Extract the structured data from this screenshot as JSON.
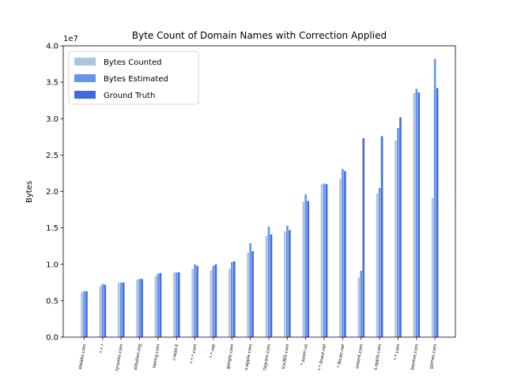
{
  "chart_data": {
    "type": "bar",
    "title": "Byte Count of Domain Names with Correction Applied",
    "xlabel": "",
    "ylabel": "Bytes",
    "offset_text": "1e7",
    "ylim": [
      0,
      40000000
    ],
    "yticks": [
      0,
      5000000,
      10000000,
      15000000,
      20000000,
      25000000,
      30000000,
      35000000,
      40000000
    ],
    "ytick_labels": [
      "0.0",
      "0.5",
      "1.0",
      "1.5",
      "2.0",
      "2.5",
      "3.0",
      "3.5",
      "4.0"
    ],
    "legend_position": "top-left",
    "categories": [
      "elslabs.com",
      "*.*.*",
      "ryrunbo.com",
      "stitution.org",
      "twimg.com",
      "i.redd.it",
      "*.*.*.com",
      "*.*.net",
      "google.com",
      "s-apple.com",
      "tagram.com",
      "ice365.com",
      "*.zoom.us",
      "*.*.llnwd.net",
      "*.fbcdn.net",
      "ontent.com",
      "s.apple.com",
      "*.*.com",
      "boxlive.com",
      "games.com"
    ],
    "series": [
      {
        "name": "Bytes Counted",
        "color": "#b0c4de",
        "values": [
          6200000,
          7000000,
          7500000,
          7900000,
          8400000,
          8900000,
          9400000,
          9200000,
          9400000,
          11600000,
          13900000,
          14500000,
          18600000,
          21000000,
          21700000,
          8200000,
          19700000,
          27000000,
          33500000,
          19100000
        ]
      },
      {
        "name": "Bytes Estimated",
        "color": "#6495ed",
        "values": [
          6300000,
          7300000,
          7500000,
          8000000,
          8700000,
          8900000,
          10000000,
          9800000,
          10300000,
          12900000,
          15200000,
          15300000,
          19600000,
          21100000,
          23100000,
          9100000,
          20500000,
          28700000,
          34100000,
          38200000
        ]
      },
      {
        "name": "Ground Truth",
        "color": "#4169e1",
        "values": [
          6300000,
          7200000,
          7500000,
          8000000,
          8800000,
          8900000,
          9800000,
          10000000,
          10400000,
          11800000,
          14100000,
          14700000,
          18700000,
          21000000,
          22800000,
          27300000,
          27600000,
          30200000,
          33600000,
          34200000
        ]
      }
    ]
  }
}
